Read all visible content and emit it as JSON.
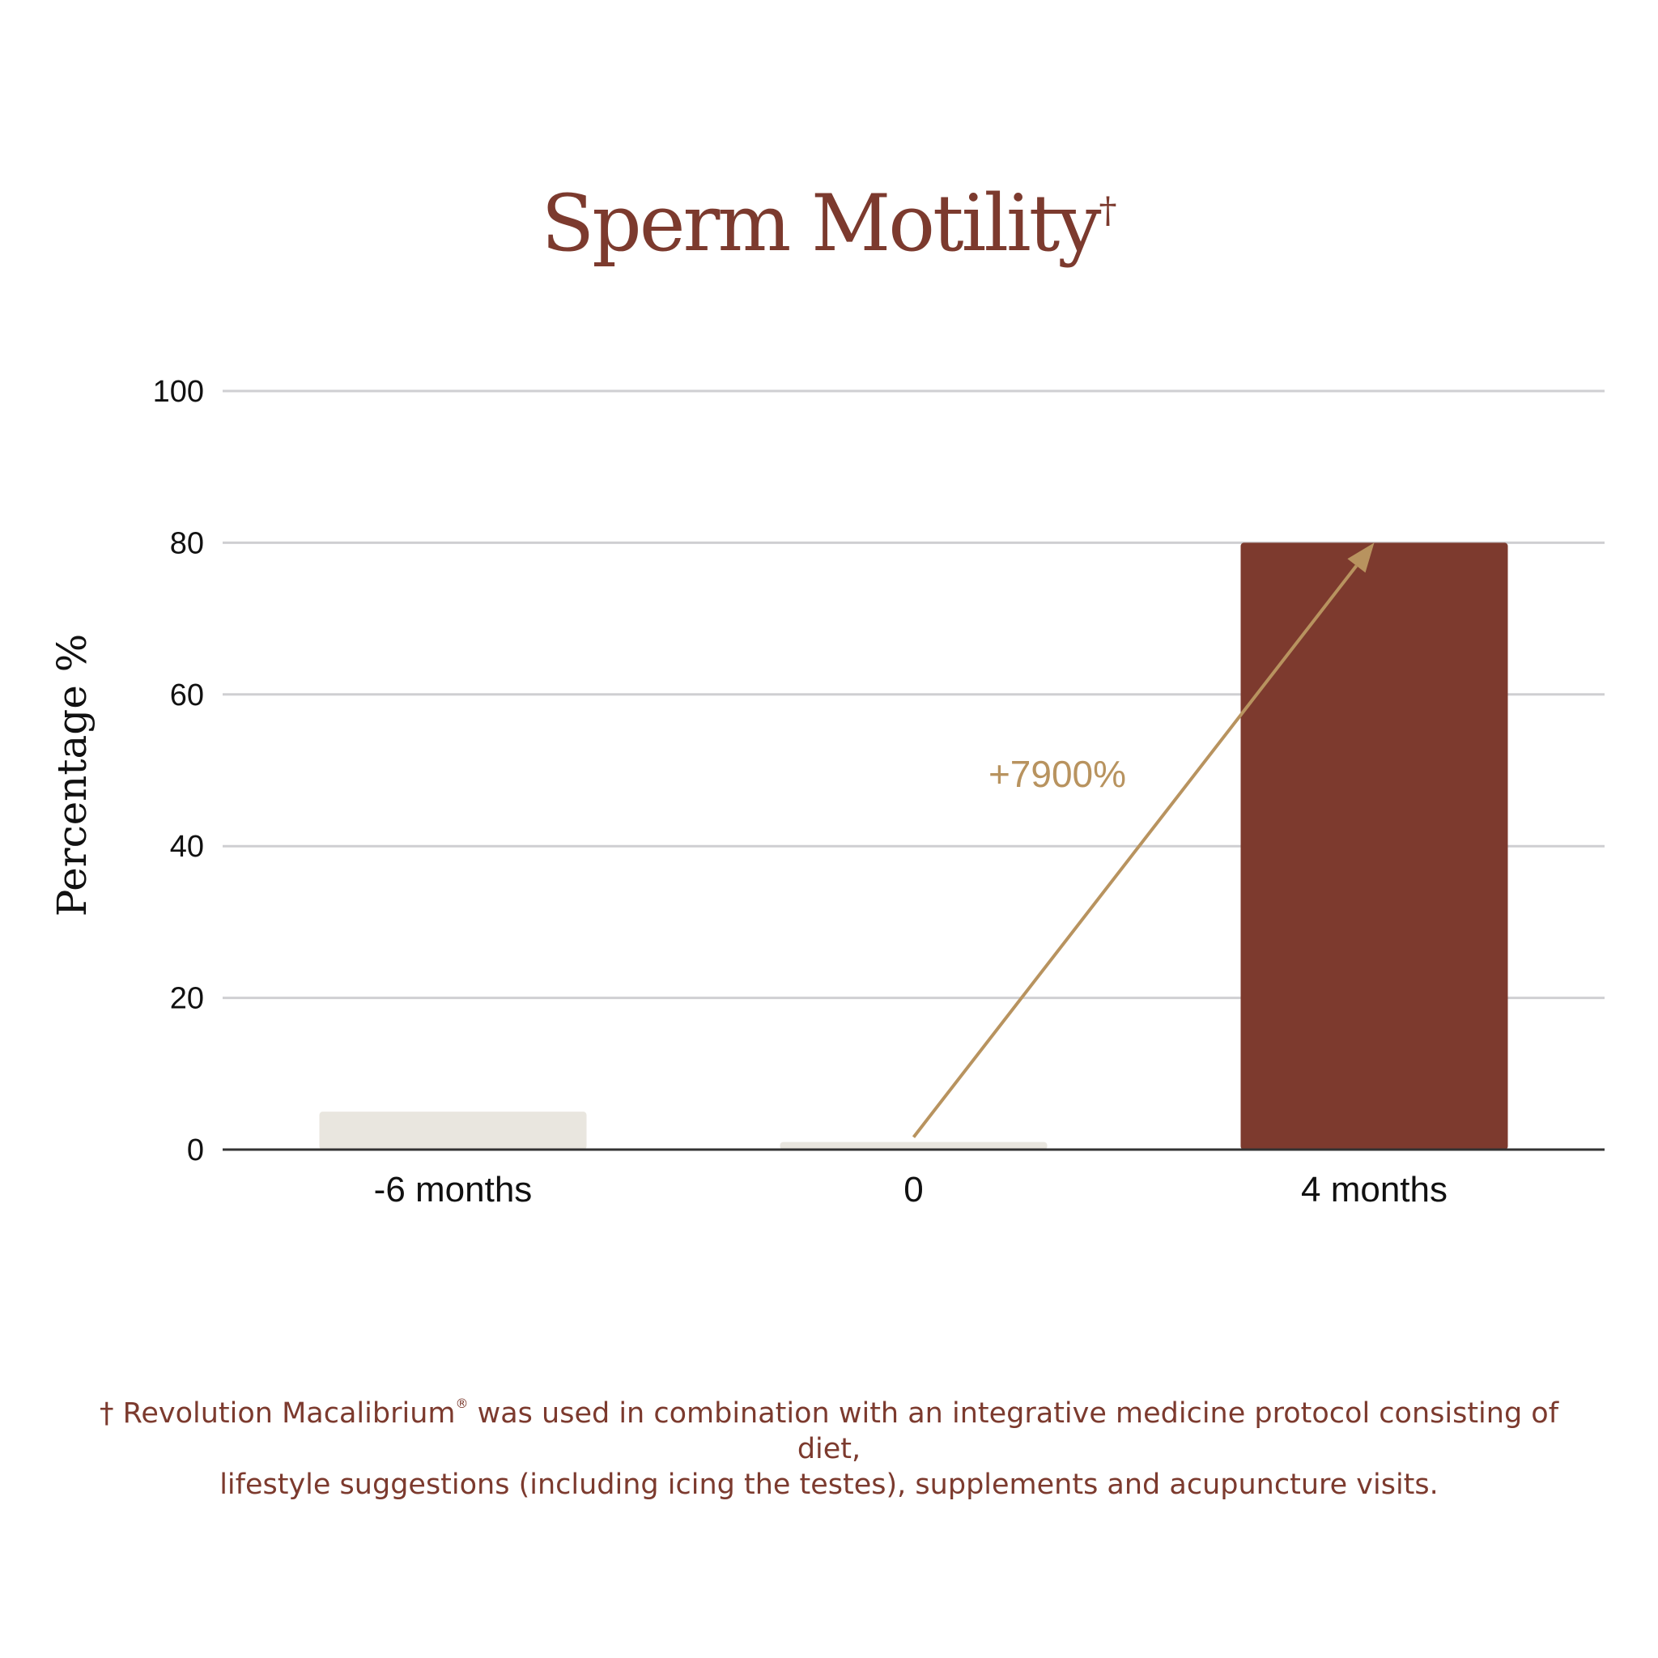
{
  "chart_data": {
    "type": "bar",
    "title": "Sperm Motility",
    "title_mark": "†",
    "ylabel": "Percentage %",
    "xlabel": "",
    "categories": [
      "-6 months",
      "0",
      "4 months"
    ],
    "values": [
      5,
      1,
      80
    ],
    "bar_colors": [
      "#e9e6df",
      "#e9e6df",
      "#7d3a2e"
    ],
    "ylim": [
      0,
      100
    ],
    "yticks": [
      0,
      20,
      40,
      60,
      80,
      100
    ],
    "grid": true,
    "legend": "none",
    "annotation": {
      "text": "+7900%",
      "from": {
        "category": "0",
        "value": 1
      },
      "to": {
        "category": "4 months",
        "value": 80
      },
      "color": "#b8935f"
    }
  },
  "footnote": {
    "line1_before": "† Revolution Macalibrium",
    "line1_mark": "®",
    "line1_after": " was used in combination with an integrative medicine protocol consisting of diet,",
    "line2": "lifestyle suggestions (including icing the testes), supplements and acupuncture visits."
  }
}
